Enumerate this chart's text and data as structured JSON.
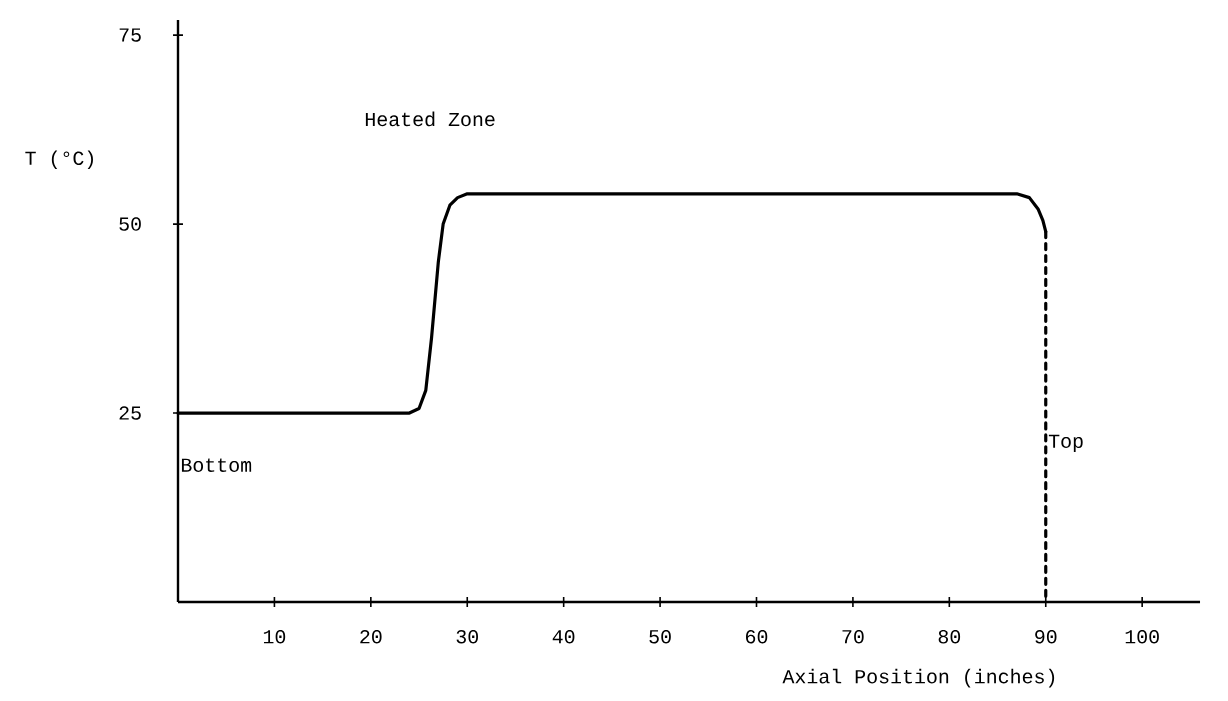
{
  "chart_data": {
    "type": "line",
    "xlabel": "Axial Position (inches)",
    "ylabel": "T (°C)",
    "xlim": [
      0,
      106
    ],
    "ylim": [
      0,
      77
    ],
    "xticks": [
      10,
      20,
      30,
      40,
      50,
      60,
      70,
      80,
      90,
      100
    ],
    "yticks": [
      25,
      50,
      75
    ],
    "marker": "none",
    "grid": false,
    "series": [
      {
        "color": "#000000",
        "line_style": "solid",
        "x": [
          0,
          24,
          25,
          25.7,
          26.3,
          27,
          27.5,
          28.2,
          29,
          30,
          87,
          88.3,
          89.2,
          89.7,
          90
        ],
        "values": [
          25,
          25,
          25.6,
          28,
          35,
          45,
          50,
          52.5,
          53.5,
          54,
          54,
          53.5,
          52,
          50.5,
          49
        ]
      },
      {
        "color": "#000000",
        "line_style": "dashed",
        "x": [
          90,
          90
        ],
        "values": [
          49,
          0
        ]
      }
    ],
    "annotations": [
      "Heated Zone",
      "Bottom",
      {
        "text": "Top",
        "x": 90,
        "y": 21
      }
    ]
  }
}
